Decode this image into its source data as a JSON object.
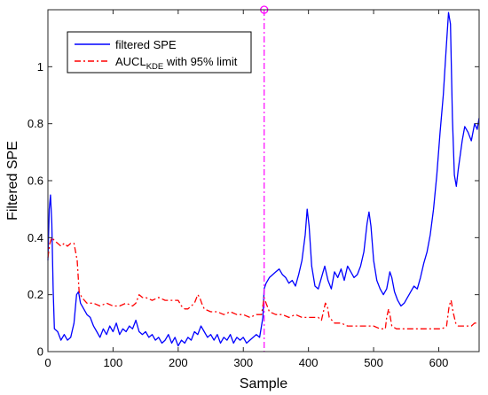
{
  "chart_data": {
    "type": "line",
    "xlabel": "Sample",
    "ylabel": "Filtered SPE",
    "xlim": [
      0,
      662
    ],
    "ylim": [
      0,
      1.2
    ],
    "xticks": [
      "0",
      "100",
      "200",
      "300",
      "400",
      "500",
      "600"
    ],
    "yticks": [
      "0",
      "0.2",
      "0.4",
      "0.6",
      "0.8",
      "1"
    ],
    "grid": false,
    "legend_position": "top-left",
    "legend": {
      "filtered_label": "filtered SPE",
      "aucl_main": "AUCL",
      "aucl_sub": "KDE",
      "aucl_rest": " with 95% limit"
    },
    "marker_x": 332,
    "series": [
      {
        "name": "filtered SPE",
        "color": "#0000ff",
        "style": "solid",
        "points": [
          [
            0,
            0.32
          ],
          [
            2,
            0.5
          ],
          [
            4,
            0.55
          ],
          [
            6,
            0.45
          ],
          [
            8,
            0.22
          ],
          [
            10,
            0.08
          ],
          [
            15,
            0.07
          ],
          [
            20,
            0.04
          ],
          [
            25,
            0.06
          ],
          [
            30,
            0.04
          ],
          [
            35,
            0.05
          ],
          [
            40,
            0.1
          ],
          [
            44,
            0.2
          ],
          [
            47,
            0.21
          ],
          [
            50,
            0.17
          ],
          [
            55,
            0.15
          ],
          [
            60,
            0.13
          ],
          [
            65,
            0.12
          ],
          [
            70,
            0.09
          ],
          [
            75,
            0.07
          ],
          [
            80,
            0.05
          ],
          [
            85,
            0.08
          ],
          [
            90,
            0.06
          ],
          [
            95,
            0.09
          ],
          [
            100,
            0.07
          ],
          [
            105,
            0.1
          ],
          [
            110,
            0.06
          ],
          [
            115,
            0.08
          ],
          [
            120,
            0.07
          ],
          [
            125,
            0.09
          ],
          [
            130,
            0.08
          ],
          [
            135,
            0.11
          ],
          [
            140,
            0.07
          ],
          [
            145,
            0.06
          ],
          [
            150,
            0.07
          ],
          [
            155,
            0.05
          ],
          [
            160,
            0.06
          ],
          [
            165,
            0.04
          ],
          [
            170,
            0.05
          ],
          [
            175,
            0.03
          ],
          [
            180,
            0.04
          ],
          [
            185,
            0.06
          ],
          [
            190,
            0.03
          ],
          [
            195,
            0.05
          ],
          [
            200,
            0.02
          ],
          [
            205,
            0.04
          ],
          [
            210,
            0.03
          ],
          [
            215,
            0.05
          ],
          [
            220,
            0.04
          ],
          [
            225,
            0.07
          ],
          [
            230,
            0.06
          ],
          [
            235,
            0.09
          ],
          [
            240,
            0.07
          ],
          [
            245,
            0.05
          ],
          [
            250,
            0.06
          ],
          [
            255,
            0.04
          ],
          [
            260,
            0.06
          ],
          [
            265,
            0.03
          ],
          [
            270,
            0.05
          ],
          [
            275,
            0.04
          ],
          [
            280,
            0.06
          ],
          [
            285,
            0.03
          ],
          [
            290,
            0.05
          ],
          [
            295,
            0.04
          ],
          [
            300,
            0.05
          ],
          [
            305,
            0.03
          ],
          [
            310,
            0.04
          ],
          [
            315,
            0.05
          ],
          [
            320,
            0.06
          ],
          [
            325,
            0.05
          ],
          [
            330,
            0.12
          ],
          [
            332,
            0.22
          ],
          [
            335,
            0.24
          ],
          [
            340,
            0.26
          ],
          [
            345,
            0.27
          ],
          [
            350,
            0.28
          ],
          [
            355,
            0.29
          ],
          [
            360,
            0.27
          ],
          [
            365,
            0.26
          ],
          [
            370,
            0.24
          ],
          [
            375,
            0.25
          ],
          [
            380,
            0.23
          ],
          [
            385,
            0.27
          ],
          [
            390,
            0.32
          ],
          [
            395,
            0.41
          ],
          [
            398,
            0.5
          ],
          [
            401,
            0.44
          ],
          [
            405,
            0.3
          ],
          [
            410,
            0.23
          ],
          [
            415,
            0.22
          ],
          [
            420,
            0.26
          ],
          [
            425,
            0.3
          ],
          [
            430,
            0.25
          ],
          [
            435,
            0.22
          ],
          [
            440,
            0.28
          ],
          [
            445,
            0.26
          ],
          [
            450,
            0.29
          ],
          [
            455,
            0.25
          ],
          [
            460,
            0.3
          ],
          [
            465,
            0.28
          ],
          [
            470,
            0.26
          ],
          [
            475,
            0.27
          ],
          [
            480,
            0.3
          ],
          [
            485,
            0.35
          ],
          [
            490,
            0.45
          ],
          [
            493,
            0.49
          ],
          [
            496,
            0.44
          ],
          [
            500,
            0.32
          ],
          [
            505,
            0.25
          ],
          [
            510,
            0.22
          ],
          [
            515,
            0.2
          ],
          [
            520,
            0.22
          ],
          [
            525,
            0.28
          ],
          [
            528,
            0.26
          ],
          [
            532,
            0.21
          ],
          [
            537,
            0.18
          ],
          [
            542,
            0.16
          ],
          [
            547,
            0.17
          ],
          [
            552,
            0.19
          ],
          [
            557,
            0.21
          ],
          [
            562,
            0.23
          ],
          [
            567,
            0.22
          ],
          [
            572,
            0.26
          ],
          [
            577,
            0.31
          ],
          [
            582,
            0.35
          ],
          [
            587,
            0.41
          ],
          [
            592,
            0.5
          ],
          [
            597,
            0.62
          ],
          [
            602,
            0.77
          ],
          [
            607,
            0.9
          ],
          [
            611,
            1.05
          ],
          [
            615,
            1.19
          ],
          [
            618,
            1.15
          ],
          [
            621,
            0.82
          ],
          [
            624,
            0.62
          ],
          [
            627,
            0.58
          ],
          [
            630,
            0.64
          ],
          [
            633,
            0.69
          ],
          [
            636,
            0.74
          ],
          [
            640,
            0.79
          ],
          [
            645,
            0.77
          ],
          [
            650,
            0.74
          ],
          [
            655,
            0.8
          ],
          [
            659,
            0.78
          ],
          [
            662,
            0.82
          ]
        ]
      },
      {
        "name": "AUCL_KDE with 95% limit",
        "color": "#ff0000",
        "style": "dashdot",
        "points": [
          [
            0,
            0.33
          ],
          [
            3,
            0.38
          ],
          [
            6,
            0.4
          ],
          [
            10,
            0.39
          ],
          [
            15,
            0.38
          ],
          [
            20,
            0.37
          ],
          [
            25,
            0.38
          ],
          [
            30,
            0.37
          ],
          [
            35,
            0.38
          ],
          [
            40,
            0.38
          ],
          [
            45,
            0.32
          ],
          [
            48,
            0.21
          ],
          [
            52,
            0.19
          ],
          [
            56,
            0.18
          ],
          [
            60,
            0.17
          ],
          [
            70,
            0.17
          ],
          [
            80,
            0.16
          ],
          [
            90,
            0.17
          ],
          [
            100,
            0.16
          ],
          [
            110,
            0.16
          ],
          [
            120,
            0.17
          ],
          [
            130,
            0.16
          ],
          [
            135,
            0.17
          ],
          [
            140,
            0.2
          ],
          [
            145,
            0.19
          ],
          [
            150,
            0.19
          ],
          [
            160,
            0.18
          ],
          [
            170,
            0.19
          ],
          [
            180,
            0.18
          ],
          [
            190,
            0.18
          ],
          [
            200,
            0.18
          ],
          [
            205,
            0.16
          ],
          [
            210,
            0.15
          ],
          [
            215,
            0.15
          ],
          [
            220,
            0.16
          ],
          [
            225,
            0.17
          ],
          [
            230,
            0.2
          ],
          [
            233,
            0.19
          ],
          [
            236,
            0.17
          ],
          [
            240,
            0.15
          ],
          [
            250,
            0.14
          ],
          [
            260,
            0.14
          ],
          [
            270,
            0.13
          ],
          [
            280,
            0.14
          ],
          [
            290,
            0.13
          ],
          [
            300,
            0.13
          ],
          [
            310,
            0.12
          ],
          [
            320,
            0.13
          ],
          [
            328,
            0.13
          ],
          [
            332,
            0.19
          ],
          [
            335,
            0.17
          ],
          [
            340,
            0.14
          ],
          [
            350,
            0.13
          ],
          [
            360,
            0.13
          ],
          [
            370,
            0.12
          ],
          [
            380,
            0.13
          ],
          [
            390,
            0.12
          ],
          [
            400,
            0.12
          ],
          [
            410,
            0.12
          ],
          [
            415,
            0.12
          ],
          [
            420,
            0.11
          ],
          [
            423,
            0.14
          ],
          [
            426,
            0.17
          ],
          [
            429,
            0.16
          ],
          [
            432,
            0.12
          ],
          [
            440,
            0.1
          ],
          [
            450,
            0.1
          ],
          [
            460,
            0.09
          ],
          [
            470,
            0.09
          ],
          [
            480,
            0.09
          ],
          [
            490,
            0.09
          ],
          [
            500,
            0.09
          ],
          [
            510,
            0.08
          ],
          [
            518,
            0.08
          ],
          [
            520,
            0.12
          ],
          [
            523,
            0.15
          ],
          [
            525,
            0.13
          ],
          [
            528,
            0.09
          ],
          [
            535,
            0.08
          ],
          [
            545,
            0.08
          ],
          [
            555,
            0.08
          ],
          [
            565,
            0.08
          ],
          [
            575,
            0.08
          ],
          [
            585,
            0.08
          ],
          [
            595,
            0.08
          ],
          [
            605,
            0.08
          ],
          [
            612,
            0.09
          ],
          [
            616,
            0.16
          ],
          [
            619,
            0.18
          ],
          [
            622,
            0.14
          ],
          [
            626,
            0.1
          ],
          [
            630,
            0.09
          ],
          [
            640,
            0.09
          ],
          [
            650,
            0.09
          ],
          [
            655,
            0.1
          ],
          [
            662,
            0.1
          ]
        ]
      }
    ]
  }
}
